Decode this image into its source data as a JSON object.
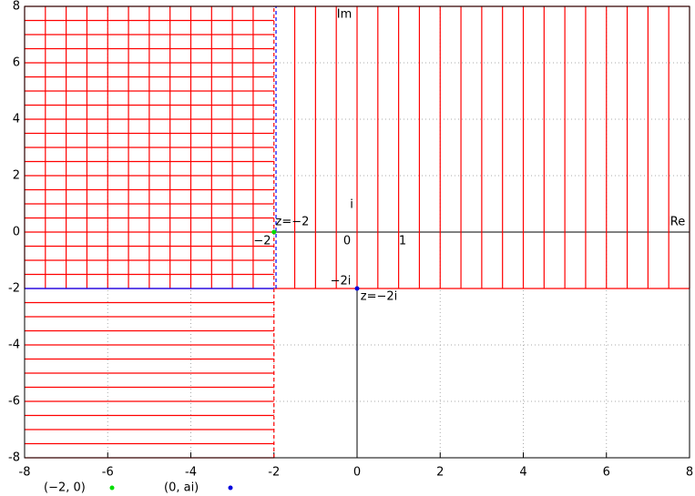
{
  "chart_data": {
    "type": "mesh",
    "xlim": [
      -8,
      8
    ],
    "ylim": [
      -8,
      8
    ],
    "xticks": [
      -8,
      -6,
      -4,
      -2,
      0,
      2,
      4,
      6,
      8
    ],
    "yticks": [
      -8,
      -6,
      -4,
      -2,
      0,
      2,
      4,
      6,
      8
    ],
    "grid": true,
    "mesh": [
      {
        "color": "#ff0000",
        "orient": "vertical",
        "dash": false,
        "span": [
          -2,
          8
        ],
        "at": [
          -8,
          -7.5,
          -7,
          -6.5,
          -6,
          -5.5,
          -5,
          -4.5,
          -4,
          -3.5,
          -3,
          -2.5
        ]
      },
      {
        "color": "#ff0000",
        "orient": "horizontal",
        "dash": false,
        "span": [
          -8,
          -2
        ],
        "at": [
          -2,
          -1.5,
          -1,
          -0.5,
          0,
          0.5,
          1,
          1.5,
          2,
          2.5,
          3,
          3.5,
          4,
          4.5,
          5,
          5.5,
          6,
          6.5,
          7,
          7.5,
          8
        ]
      },
      {
        "color": "#ff0000",
        "orient": "vertical",
        "dash": false,
        "span": [
          -2,
          8
        ],
        "at": [
          -1.5,
          -1,
          -0.5,
          0,
          0.5,
          1,
          1.5,
          2,
          2.5,
          3,
          3.5,
          4,
          4.5,
          5,
          5.5,
          6,
          6.5,
          7,
          7.5,
          8
        ]
      },
      {
        "color": "#ff0000",
        "orient": "horizontal",
        "dash": false,
        "span": [
          -2,
          8
        ],
        "at": [
          -2,
          8
        ]
      },
      {
        "color": "#ff0000",
        "orient": "horizontal",
        "dash": false,
        "span": [
          -8,
          -2
        ],
        "at": [
          -8,
          -7.5,
          -7,
          -6.5,
          -6,
          -5.5,
          -5,
          -4.5,
          -4,
          -3.5,
          -3,
          -2.5
        ]
      },
      {
        "color": "#ff0000",
        "orient": "vertical",
        "dash": true,
        "span": [
          -8,
          8
        ],
        "at": [
          -2
        ]
      },
      {
        "color": "#0000ff",
        "orient": "vertical",
        "dash": true,
        "span": [
          -2,
          8
        ],
        "at": [
          -1.95
        ]
      },
      {
        "color": "#0000ff",
        "orient": "horizontal",
        "dash": false,
        "span": [
          -8,
          -2
        ],
        "at": [
          -2
        ]
      }
    ],
    "series": [
      {
        "name": "(−2, 0)",
        "color": "#00dd00",
        "x": [
          -2
        ],
        "values": [
          0
        ]
      },
      {
        "name": "(0, ai)",
        "color": "#0000dd",
        "x": [
          0
        ],
        "values": [
          -2
        ]
      }
    ],
    "annotations": [
      "Im",
      "Re",
      "i",
      "0",
      "1",
      "−2",
      "−2i",
      "z=−2",
      "z=−2i"
    ]
  }
}
